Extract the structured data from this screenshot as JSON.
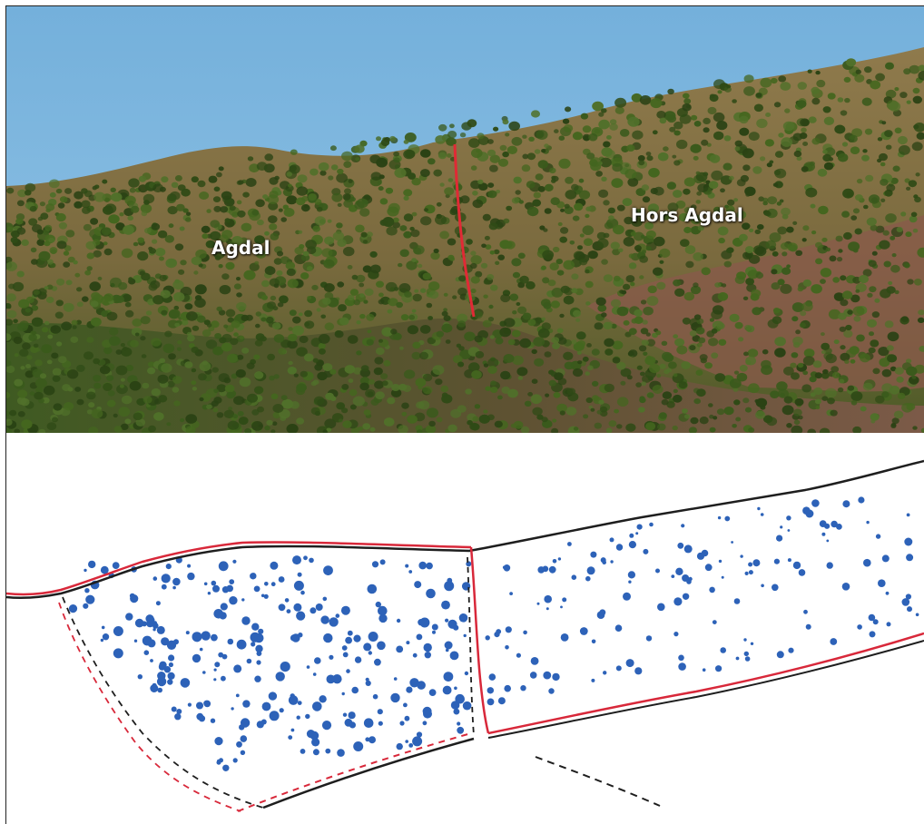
{
  "photo": {
    "label_left": "Agdal",
    "label_right": "Hors Agdal"
  },
  "colors": {
    "sky": "#7fb7dc",
    "vegetation": "#3c5a1e",
    "soil": "#a36a4e",
    "boundary_red": "#d8283a",
    "outline_black": "#1e1e1e",
    "tree_blue": "#2d62b8"
  },
  "sketch": {
    "zones": [
      "agdal-zone",
      "hors-agdal-zone"
    ],
    "tree_density": {
      "agdal": "high",
      "hors_agdal": "low"
    }
  }
}
